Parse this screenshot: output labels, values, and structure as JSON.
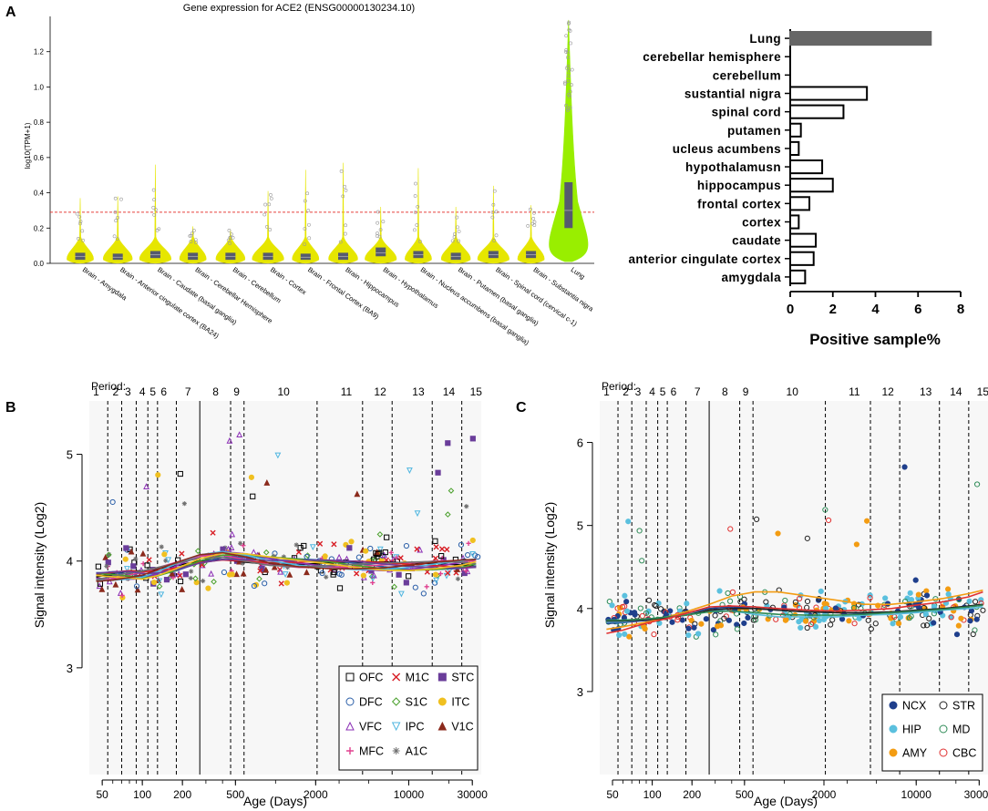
{
  "panels": {
    "a": "A",
    "b": "B",
    "c": "C"
  },
  "chart_data": [
    {
      "id": "violin",
      "type": "violin",
      "title": "Gene expression for ACE2 (ENSG00000130234.10)",
      "ylabel": "log10(TPM+1)",
      "ylim": [
        0,
        1.4
      ],
      "yticks": [
        "0.0",
        "0.2",
        "0.4",
        "0.6",
        "0.8",
        "1.0",
        "1.2"
      ],
      "threshold": 0.29,
      "colors": {
        "brain": "#e6e600",
        "lung": "#99ee00",
        "threshold": "#e8413c",
        "box": "#555a6e"
      },
      "categories": [
        "Brain - Amygdala",
        "Brain - Anterior cingulate cortex (BA24)",
        "Brain - Caudate (basal ganglia)",
        "Brain - Cerebellar Hemisphere",
        "Brain - Cerebellum",
        "Brain - Cortex",
        "Brain - Frontal Cortex (BA9)",
        "Brain - Hippocampus",
        "Brain - Hypothalamus",
        "Brain - Nucleus accumbens (basal ganglia)",
        "Brain - Putamen (basal ganglia)",
        "Brain - Spinal cord (cervical c-1)",
        "Brain - Substantia nigra",
        "Lung"
      ],
      "q1": [
        0.02,
        0.02,
        0.03,
        0.02,
        0.02,
        0.02,
        0.02,
        0.02,
        0.04,
        0.03,
        0.02,
        0.03,
        0.03,
        0.2
      ],
      "median": [
        0.04,
        0.035,
        0.05,
        0.04,
        0.04,
        0.04,
        0.035,
        0.04,
        0.06,
        0.05,
        0.04,
        0.05,
        0.05,
        0.3
      ],
      "q3": [
        0.06,
        0.055,
        0.07,
        0.06,
        0.06,
        0.06,
        0.055,
        0.06,
        0.09,
        0.07,
        0.06,
        0.07,
        0.07,
        0.46
      ],
      "max": [
        0.37,
        0.38,
        0.56,
        0.21,
        0.19,
        0.41,
        0.53,
        0.57,
        0.32,
        0.54,
        0.32,
        0.44,
        0.33,
        1.38
      ]
    },
    {
      "id": "bar",
      "type": "bar",
      "orientation": "horizontal",
      "xlabel": "Positive sample%",
      "xlim": [
        0,
        8
      ],
      "xticks": [
        "0",
        "2",
        "4",
        "6",
        "8"
      ],
      "categories": [
        "Lung",
        "cerebellar hemisphere",
        "cerebellum",
        "sustantial nigra",
        "spinal cord",
        "putamen",
        "ucleus acumbens",
        "hypothalamusn",
        "hippocampus",
        "frontal cortex",
        "cortex",
        "caudate",
        "anterior cingulate cortex",
        "amygdala"
      ],
      "values": [
        6.6,
        0,
        0,
        3.6,
        2.5,
        0.5,
        0.4,
        1.5,
        2.0,
        0.9,
        0.4,
        1.2,
        1.1,
        0.7
      ],
      "colors": {
        "Lung": "#666666"
      }
    },
    {
      "id": "lineB",
      "type": "scatter",
      "xlabel": "Age (Days)",
      "ylabel": "Signal intensity (Log2)",
      "xscale": "log",
      "xlim": [
        40,
        35000
      ],
      "ylim": [
        2,
        5.5
      ],
      "yticks": [
        "3",
        "4",
        "5"
      ],
      "xticks": [
        "50",
        "100",
        "200",
        "500",
        "2000",
        "10000",
        "30000"
      ],
      "period_label": "Period:",
      "periods": [
        "1",
        "2",
        "3",
        "4",
        "5",
        "6",
        "7",
        "8",
        "9",
        "10",
        "11",
        "12",
        "13",
        "14",
        "15"
      ],
      "period_centers": [
        45,
        63,
        78,
        100,
        120,
        145,
        220,
        355,
        510,
        1150,
        3400,
        6100,
        11800,
        20000,
        32000
      ],
      "boundaries": [
        55,
        70,
        90,
        110,
        130,
        180,
        270,
        460,
        580,
        2050,
        4500,
        7500,
        15000,
        25000
      ],
      "solid_boundary": 270,
      "legend": [
        "OFC",
        "DFC",
        "VFC",
        "MFC",
        "M1C",
        "S1C",
        "IPC",
        "A1C",
        "STC",
        "ITC",
        "V1C"
      ],
      "legend_symbols": [
        "square",
        "circle",
        "triangle",
        "plus",
        "cross",
        "diamond",
        "triangle-down",
        "asterisk",
        "square-fill",
        "circle-fill",
        "triangle-fill"
      ],
      "legend_colors": [
        "#000000",
        "#2b5fa8",
        "#8b2fb5",
        "#e0408f",
        "#d81f26",
        "#4aa02c",
        "#4fb6e0",
        "#707070",
        "#6a3d9a",
        "#f0c020",
        "#8b2a1c"
      ],
      "fit_x": [
        45,
        60,
        80,
        100,
        130,
        180,
        270,
        400,
        600,
        900,
        1500,
        2500,
        4000,
        6500,
        10000,
        16000,
        25000,
        32000
      ],
      "fit_y": [
        3.85,
        3.86,
        3.87,
        3.87,
        3.9,
        3.95,
        4.02,
        4.05,
        4.03,
        4.0,
        3.98,
        3.97,
        3.96,
        3.95,
        3.95,
        3.96,
        3.97,
        3.98
      ]
    },
    {
      "id": "lineC",
      "type": "scatter",
      "xlabel": "Age (Days)",
      "ylabel": "Signal intensity (Log2)",
      "xscale": "log",
      "xlim": [
        40,
        35000
      ],
      "ylim": [
        2,
        6.5
      ],
      "yticks": [
        "3",
        "4",
        "5",
        "6"
      ],
      "xticks": [
        "50",
        "100",
        "200",
        "500",
        "2000",
        "10000",
        "30000"
      ],
      "period_label": "Period:",
      "periods": [
        "1",
        "2",
        "3",
        "4",
        "5",
        "6",
        "7",
        "8",
        "9",
        "10",
        "11",
        "12",
        "13",
        "14",
        "15"
      ],
      "period_centers": [
        45,
        63,
        78,
        100,
        120,
        145,
        220,
        355,
        510,
        1150,
        3400,
        6100,
        11800,
        20000,
        32000
      ],
      "boundaries": [
        55,
        70,
        90,
        110,
        130,
        180,
        270,
        460,
        580,
        2050,
        4500,
        7500,
        15000,
        25000
      ],
      "solid_boundary": 270,
      "legend": [
        "NCX",
        "HIP",
        "AMY",
        "STR",
        "MD",
        "CBC"
      ],
      "legend_symbols": [
        "circle-fill",
        "circle-fill",
        "circle-fill",
        "circle",
        "circle",
        "circle"
      ],
      "legend_colors": [
        "#1f3f8c",
        "#5bc0de",
        "#f39c12",
        "#222222",
        "#2e8b57",
        "#e03030"
      ],
      "fit_series": [
        {
          "name": "NCX",
          "color": "#1f3f8c",
          "y": [
            3.82,
            3.83,
            3.85,
            3.86,
            3.9,
            3.94,
            4.0,
            4.02,
            4.0,
            3.98,
            3.96,
            3.95,
            3.94,
            3.95,
            3.96,
            3.99,
            4.02,
            4.04
          ]
        },
        {
          "name": "HIP",
          "color": "#5bc0de",
          "y": [
            3.84,
            3.84,
            3.86,
            3.87,
            3.9,
            3.93,
            3.98,
            3.97,
            3.93,
            3.9,
            3.9,
            3.9,
            3.92,
            3.93,
            3.95,
            3.98,
            4.0,
            4.02
          ]
        },
        {
          "name": "AMY",
          "color": "#f39c12",
          "y": [
            3.75,
            3.78,
            3.82,
            3.85,
            3.9,
            3.96,
            4.05,
            4.15,
            4.2,
            4.2,
            4.15,
            4.1,
            4.05,
            4.05,
            4.08,
            4.12,
            4.18,
            4.22
          ]
        },
        {
          "name": "STR",
          "color": "#222222",
          "y": [
            3.85,
            3.85,
            3.86,
            3.87,
            3.89,
            3.92,
            3.98,
            4.0,
            4.0,
            3.98,
            3.96,
            3.95,
            3.95,
            3.96,
            3.98,
            4.0,
            4.03,
            4.05
          ]
        },
        {
          "name": "MD",
          "color": "#2e8b57",
          "y": [
            3.86,
            3.86,
            3.87,
            3.88,
            3.9,
            3.92,
            3.96,
            3.97,
            3.95,
            3.93,
            3.92,
            3.92,
            3.93,
            3.95,
            3.97,
            3.99,
            4.02,
            4.04
          ]
        },
        {
          "name": "CBC",
          "color": "#e03030",
          "y": [
            3.7,
            3.74,
            3.8,
            3.84,
            3.88,
            3.94,
            4.02,
            4.03,
            4.02,
            4.0,
            3.98,
            3.97,
            3.98,
            4.0,
            4.04,
            4.08,
            4.14,
            4.2
          ]
        }
      ],
      "fit_x": [
        45,
        60,
        80,
        100,
        130,
        180,
        270,
        400,
        600,
        900,
        1500,
        2500,
        4000,
        6500,
        10000,
        16000,
        25000,
        32000
      ]
    }
  ]
}
